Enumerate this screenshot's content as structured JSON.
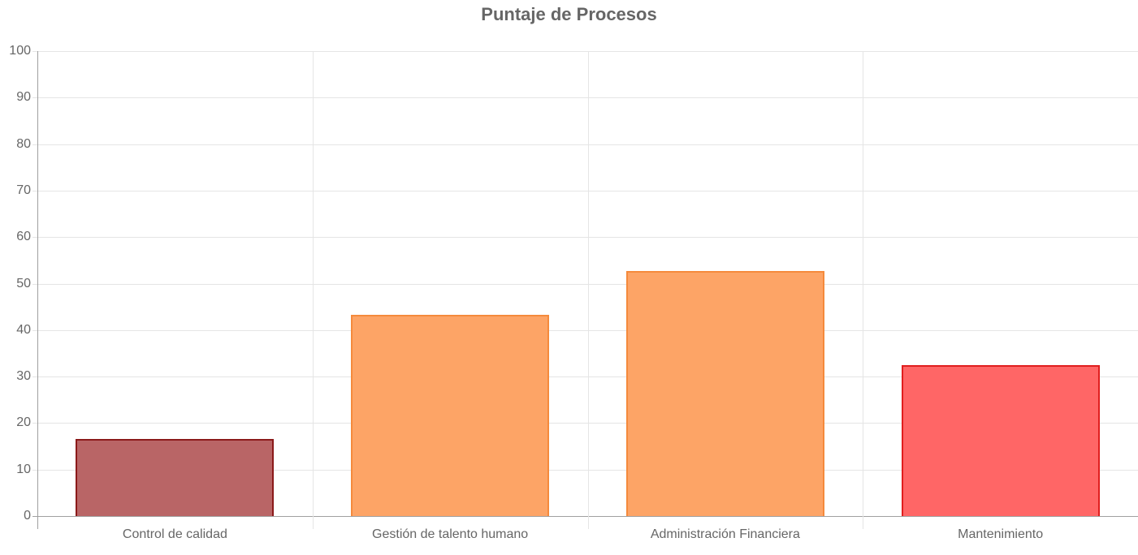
{
  "chart_data": {
    "type": "bar",
    "title": "Puntaje de Procesos",
    "categories": [
      "Control de calidad",
      "Gestión de talento humano",
      "Administración Financiera",
      "Mantenimiento"
    ],
    "values": [
      16.6,
      43.3,
      52.7,
      32.5
    ],
    "xlabel": "",
    "ylabel": "",
    "ylim": [
      0,
      100
    ],
    "yticks": [
      0,
      10,
      20,
      30,
      40,
      50,
      60,
      70,
      80,
      90,
      100
    ],
    "grid": true,
    "legend": null,
    "colors": {
      "fill": [
        "#b96566",
        "#fda466",
        "#fda466",
        "#ff6666"
      ],
      "border": [
        "#8b1a1a",
        "#f58a3c",
        "#f58a3c",
        "#e01e1e"
      ]
    }
  },
  "ui": {
    "title": "Puntaje de Procesos",
    "yticks": [
      "100",
      "90",
      "80",
      "70",
      "60",
      "50",
      "40",
      "30",
      "20",
      "10",
      "0"
    ],
    "xlabels": [
      "Control de calidad",
      "Gestión de talento humano",
      "Administración Financiera",
      "Mantenimiento"
    ]
  }
}
